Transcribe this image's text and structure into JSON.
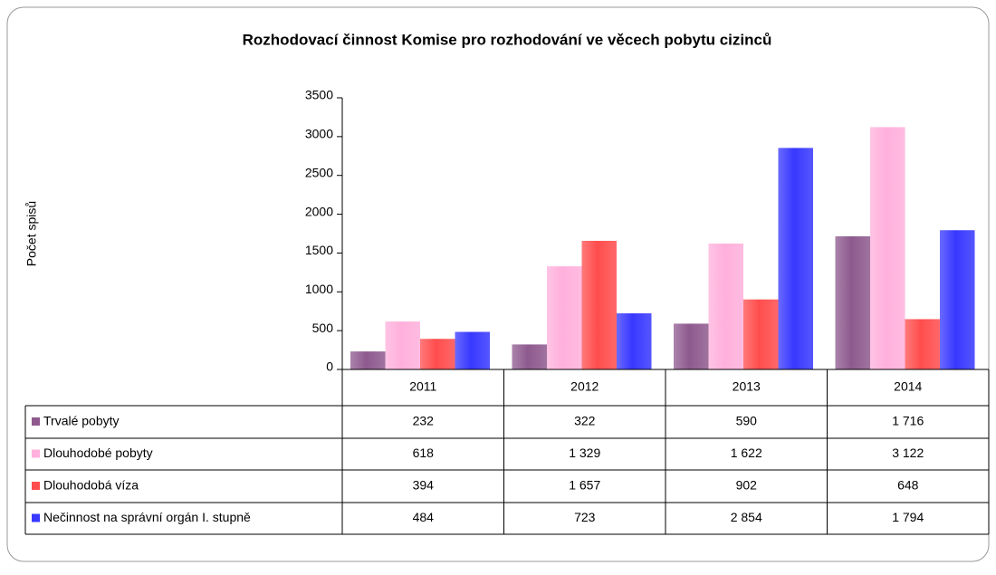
{
  "chart_data": {
    "type": "bar",
    "title": "Rozhodovací činnost Komise pro rozhodování ve věcech pobytu cizinců",
    "y_label": "Počet spisů",
    "categories": [
      "2011",
      "2012",
      "2013",
      "2014"
    ],
    "series": [
      {
        "name": "Trvalé pobyty",
        "color": "#8e5a8e",
        "values": [
          232,
          322,
          590,
          1716
        ],
        "value_labels": [
          "232",
          "322",
          "590",
          "1 716"
        ]
      },
      {
        "name": "Dlouhodobé pobyty",
        "color": "#ffb0dc",
        "values": [
          618,
          1329,
          1622,
          3122
        ],
        "value_labels": [
          "618",
          "1 329",
          "1 622",
          "3 122"
        ]
      },
      {
        "name": "Dlouhodobá víza",
        "color": "#ff4d4d",
        "values": [
          394,
          1657,
          902,
          648
        ],
        "value_labels": [
          "394",
          "1 657",
          "902",
          "648"
        ]
      },
      {
        "name": "Nečinnost na správní orgán I. stupně",
        "color": "#3838ff",
        "values": [
          484,
          723,
          2854,
          1794
        ],
        "value_labels": [
          "484",
          "723",
          "2 854",
          "1 794"
        ]
      }
    ],
    "ylim": [
      0,
      3500
    ],
    "yticks": [
      0,
      500,
      1000,
      1500,
      2000,
      2500,
      3000,
      3500
    ]
  }
}
